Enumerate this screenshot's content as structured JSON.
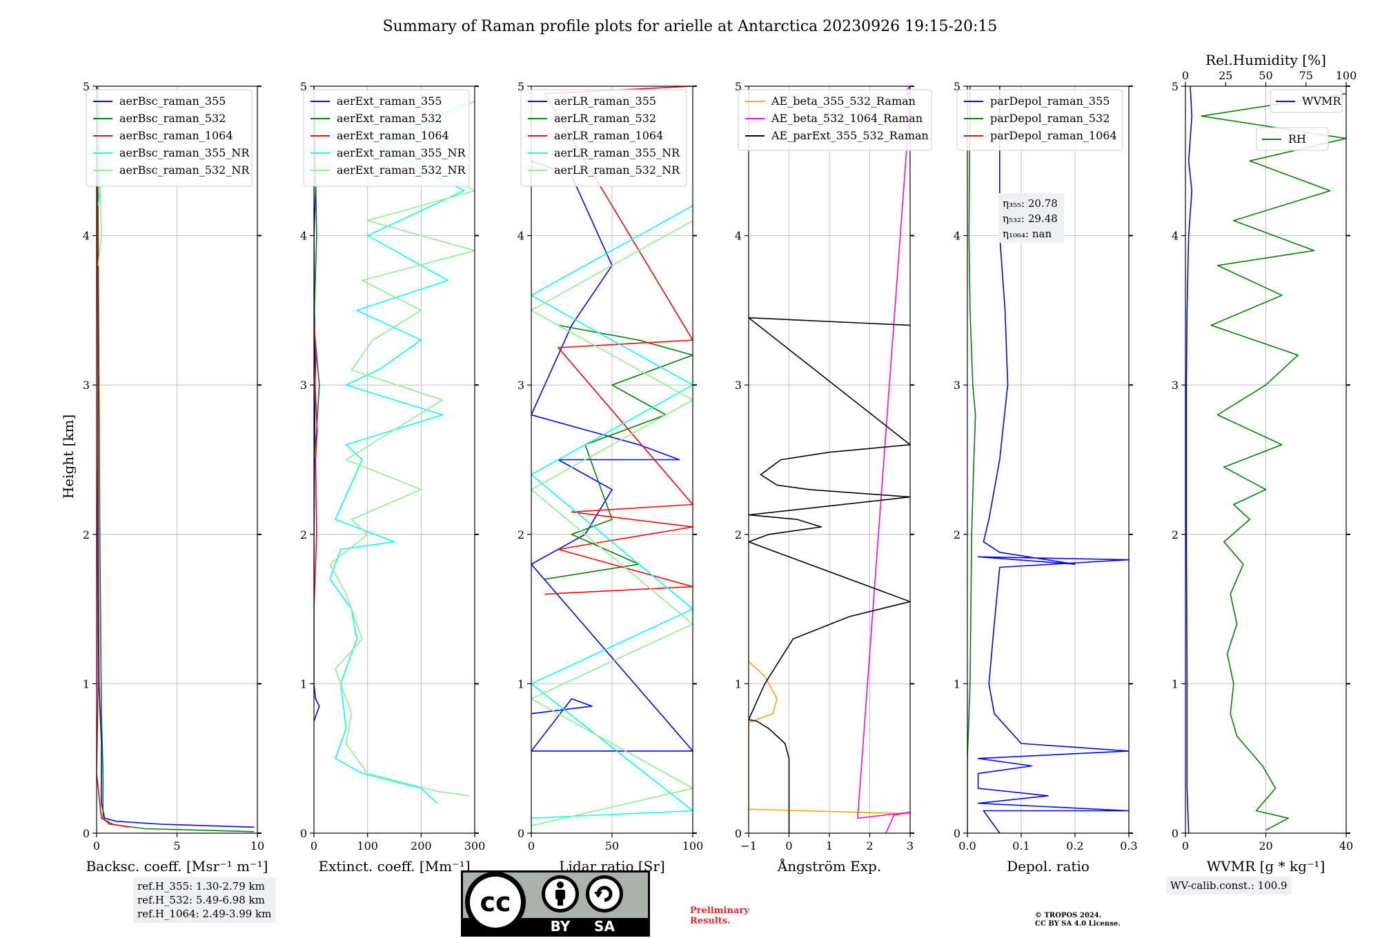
{
  "figure": {
    "title": "Summary of Raman profile plots for arielle at Antarctica 20230926 19:15-20:15",
    "ylabel": "Height [km]"
  },
  "chart_data": [
    {
      "type": "line",
      "xlabel": "Backsc. coeff. [Msr⁻¹ m⁻¹]",
      "xlim": [
        0,
        10
      ],
      "ylim": [
        0,
        5
      ],
      "xticks": [
        "0",
        "5",
        "10"
      ],
      "yticks": [
        "0",
        "1",
        "2",
        "3",
        "4",
        "5"
      ],
      "grid": true,
      "legend": "top-left",
      "series": [
        {
          "name": "aerBsc_raman_355",
          "color": "#0000ff",
          "x": [
            9.8,
            4.0,
            1.2,
            0.5,
            0.3,
            0.3,
            0.15,
            0.1,
            0.08,
            0.05,
            0.05
          ],
          "y": [
            0.04,
            0.06,
            0.08,
            0.1,
            0.2,
            0.6,
            1.0,
            2.0,
            3.0,
            4.0,
            5.0
          ]
        },
        {
          "name": "aerBsc_raman_532",
          "color": "#008000",
          "x": [
            9.8,
            3.0,
            0.8,
            0.4,
            0.4,
            0.3,
            0.2,
            0.15,
            0.1,
            0.05
          ],
          "y": [
            0.01,
            0.03,
            0.06,
            0.1,
            0.4,
            0.8,
            2.0,
            3.0,
            4.0,
            5.0
          ]
        },
        {
          "name": "aerBsc_raman_1064",
          "color": "#ff0000",
          "x": [
            2.0,
            1.0,
            0.3,
            0.1,
            0.0,
            0.1,
            0.05,
            0.1,
            0.05,
            0.0
          ],
          "y": [
            0.04,
            0.06,
            0.1,
            0.3,
            0.4,
            1.0,
            2.0,
            3.0,
            4.0,
            5.0
          ]
        },
        {
          "name": "aerBsc_raman_355_NR",
          "color": "#00ffff",
          "x": [
            0.1,
            0.2,
            0.1,
            0.2,
            0.1
          ],
          "y": [
            4.2,
            4.3,
            4.5,
            4.7,
            5.0
          ]
        },
        {
          "name": "aerBsc_raman_532_NR",
          "color": "#90ee90",
          "x": [
            0.1,
            0.3,
            0.2,
            0.3,
            0.1
          ],
          "y": [
            3.8,
            4.0,
            4.4,
            4.7,
            5.0
          ]
        }
      ]
    },
    {
      "type": "line",
      "xlabel": "Extinct. coeff. [Mm⁻¹]",
      "xlim": [
        0,
        300
      ],
      "ylim": [
        0,
        5
      ],
      "xticks": [
        "0",
        "100",
        "200",
        "300"
      ],
      "yticks": [
        "0",
        "1",
        "2",
        "3",
        "4",
        "5"
      ],
      "grid": true,
      "legend": "top-left",
      "series": [
        {
          "name": "aerExt_raman_355",
          "color": "#0000ff",
          "x": [
            0,
            5,
            10,
            3,
            0,
            0,
            2,
            0,
            3,
            0
          ],
          "y": [
            0.75,
            0.8,
            0.85,
            0.9,
            1.0,
            2.0,
            3.0,
            4.0,
            4.3,
            5.0
          ]
        },
        {
          "name": "aerExt_raman_532",
          "color": "#008000",
          "x": [
            0,
            5,
            10,
            5,
            0,
            5,
            0
          ],
          "y": [
            2.5,
            2.7,
            3.0,
            3.2,
            3.4,
            4.0,
            5.0
          ]
        },
        {
          "name": "aerExt_raman_1064",
          "color": "#ff0000",
          "x": [
            0,
            5,
            3,
            6,
            2,
            4,
            0
          ],
          "y": [
            1.5,
            2.0,
            2.5,
            2.7,
            3.0,
            3.2,
            3.4
          ]
        },
        {
          "name": "aerExt_raman_355_NR",
          "color": "#00ffff",
          "x": [
            230,
            200,
            90,
            40,
            60,
            50,
            80,
            70,
            30,
            50,
            150,
            40,
            90,
            60,
            240,
            60,
            120,
            200,
            80,
            250,
            100,
            280,
            120,
            290
          ],
          "y": [
            0.2,
            0.3,
            0.4,
            0.5,
            0.7,
            1.0,
            1.3,
            1.5,
            1.7,
            1.9,
            1.95,
            2.1,
            2.5,
            2.6,
            2.8,
            3.0,
            3.1,
            3.3,
            3.5,
            3.7,
            4.0,
            4.3,
            4.6,
            4.9
          ]
        },
        {
          "name": "aerExt_raman_532_NR",
          "color": "#90ee90",
          "x": [
            290,
            230,
            100,
            60,
            70,
            40,
            90,
            60,
            30,
            100,
            70,
            200,
            60,
            150,
            240,
            70,
            110,
            200,
            90,
            300,
            100,
            300,
            150,
            300
          ],
          "y": [
            0.25,
            0.28,
            0.4,
            0.6,
            0.8,
            1.1,
            1.3,
            1.6,
            1.8,
            2.0,
            2.1,
            2.3,
            2.5,
            2.7,
            2.9,
            3.1,
            3.3,
            3.5,
            3.7,
            3.9,
            4.1,
            4.3,
            4.6,
            4.9
          ]
        }
      ]
    },
    {
      "type": "line",
      "xlabel": "Lidar ratio [Sr]",
      "xlim": [
        0,
        120
      ],
      "ylim": [
        0,
        5
      ],
      "xticks": [
        "0",
        "50",
        "100"
      ],
      "yticks": [
        "0",
        "1",
        "2",
        "3",
        "4",
        "5"
      ],
      "grid": true,
      "legend": "top-left",
      "series": [
        {
          "name": "aerLR_raman_355",
          "color": "#0000ff",
          "x": [
            0,
            45,
            30,
            0,
            120,
            0,
            40,
            60,
            20,
            110,
            80,
            0,
            10,
            30,
            45,
            60,
            50,
            40,
            30,
            0
          ],
          "y": [
            0.8,
            0.85,
            0.9,
            0.55,
            0.55,
            1.8,
            2.0,
            2.3,
            2.5,
            2.5,
            2.6,
            2.8,
            3.0,
            3.4,
            3.6,
            3.8,
            4.0,
            4.2,
            4.4,
            4.5
          ]
        },
        {
          "name": "aerLR_raman_532",
          "color": "#008000",
          "x": [
            10,
            80,
            30,
            60,
            40,
            100,
            60,
            120,
            80,
            20
          ],
          "y": [
            1.7,
            1.8,
            2.0,
            2.1,
            2.6,
            2.8,
            3.0,
            3.2,
            3.3,
            3.4
          ]
        },
        {
          "name": "aerLR_raman_1064",
          "color": "#ff0000",
          "x": [
            10,
            120,
            20,
            120,
            30,
            120,
            20,
            120,
            10,
            120
          ],
          "y": [
            1.6,
            1.65,
            1.9,
            2.05,
            2.15,
            2.2,
            3.25,
            3.3,
            4.95,
            5.0
          ]
        },
        {
          "name": "aerLR_raman_355_NR",
          "color": "#00ffff",
          "x": [
            0,
            120,
            0,
            120,
            0,
            120,
            0,
            120
          ],
          "y": [
            0.1,
            0.15,
            1.0,
            1.5,
            2.4,
            3.0,
            3.6,
            4.2
          ]
        },
        {
          "name": "aerLR_raman_532_NR",
          "color": "#90ee90",
          "x": [
            0,
            120,
            0,
            120,
            0,
            120,
            0,
            120
          ],
          "y": [
            0.05,
            0.3,
            0.9,
            1.4,
            2.3,
            2.9,
            3.5,
            4.1
          ]
        }
      ]
    },
    {
      "type": "line",
      "xlabel": "Ångström Exp.",
      "xlim": [
        -1,
        3
      ],
      "ylim": [
        0,
        5
      ],
      "xticks": [
        "−1",
        "0",
        "1",
        "2",
        "3"
      ],
      "yticks": [
        "0",
        "1",
        "2",
        "3",
        "4",
        "5"
      ],
      "grid": true,
      "legend": "top-left",
      "series": [
        {
          "name": "AE_beta_355_532_Raman",
          "color": "#ffa500",
          "x": [
            3.0,
            -1.0,
            -1.0,
            -0.4,
            -0.3,
            -0.6,
            -1.0
          ],
          "y": [
            0.13,
            0.16,
            0.74,
            0.8,
            0.9,
            1.05,
            1.15
          ]
        },
        {
          "name": "AE_beta_532_1064_Raman",
          "color": "#ff00ff",
          "x": [
            2.4,
            2.6,
            3.0,
            1.7,
            3.0,
            2.9,
            3.0
          ],
          "y": [
            0.0,
            0.12,
            0.14,
            0.1,
            4.9,
            4.97,
            5.0
          ]
        },
        {
          "name": "AE_parExt_355_532_Raman",
          "color": "#000000",
          "x": [
            0.0,
            0.0,
            -0.1,
            -0.5,
            -0.8,
            -1.0,
            -0.6,
            0.1,
            1.5,
            3.0,
            -1.0,
            -0.5,
            0.8,
            0.2,
            -1.0,
            3.0,
            0.5,
            -0.3,
            -0.7,
            -0.2,
            1.0,
            3.0,
            -1.0,
            3.0
          ],
          "y": [
            0.0,
            0.5,
            0.6,
            0.7,
            0.75,
            0.76,
            1.0,
            1.3,
            1.45,
            1.55,
            1.95,
            2.0,
            2.05,
            2.1,
            2.13,
            2.25,
            2.3,
            2.33,
            2.4,
            2.5,
            2.55,
            2.6,
            3.45,
            3.4
          ]
        }
      ]
    },
    {
      "type": "line",
      "xlabel": "Depol. ratio",
      "xlim": [
        0,
        0.3
      ],
      "ylim": [
        0,
        5
      ],
      "xticks": [
        "0.0",
        "0.1",
        "0.2",
        "0.3"
      ],
      "yticks": [
        "0",
        "1",
        "2",
        "3",
        "4",
        "5"
      ],
      "grid": true,
      "legend": "top-left",
      "series": [
        {
          "name": "parDepol_raman_355",
          "color": "#0000ff",
          "x": [
            0.06,
            0.03,
            0.3,
            0.02,
            0.15,
            0.02,
            0.02,
            0.12,
            0.02,
            0.3,
            0.1,
            0.05,
            0.04,
            0.05,
            0.06,
            0.3,
            0.02,
            0.2,
            0.06,
            0.03,
            0.04,
            0.06,
            0.075,
            0.07,
            0.06,
            0.06
          ],
          "y": [
            0.0,
            0.15,
            0.15,
            0.2,
            0.25,
            0.3,
            0.4,
            0.45,
            0.5,
            0.55,
            0.6,
            0.8,
            1.0,
            1.4,
            1.78,
            1.83,
            1.85,
            1.8,
            1.88,
            1.95,
            2.1,
            2.5,
            3.0,
            3.5,
            4.0,
            5.0
          ]
        },
        {
          "name": "parDepol_raman_532",
          "color": "#008000",
          "x": [
            0.0,
            0.0,
            0.005,
            0.008,
            0.012,
            0.015,
            0.01,
            0.005,
            0.003,
            0.005
          ],
          "y": [
            0.0,
            0.5,
            1.0,
            2.0,
            2.5,
            2.8,
            3.0,
            3.5,
            4.0,
            5.0
          ]
        },
        {
          "name": "parDepol_raman_1064",
          "color": "#ff0000",
          "x": [],
          "y": []
        }
      ],
      "annotation": [
        "η₃₅₅: 20.78",
        "η₅₃₂: 29.48",
        "η₁₀₆₄: nan"
      ]
    },
    {
      "type": "line",
      "xlabel": "WVMR [g * kg⁻¹]",
      "x2label": "Rel.Humidity [%]",
      "xlim": [
        0,
        50
      ],
      "x2lim": [
        0,
        100
      ],
      "ylim": [
        0,
        5
      ],
      "xticks": [
        "0",
        "20",
        "40"
      ],
      "x2ticks": [
        "0",
        "25",
        "50",
        "75",
        "100"
      ],
      "yticks": [
        "0",
        "1",
        "2",
        "3",
        "4",
        "5"
      ],
      "grid": true,
      "legend": "top-right",
      "series": [
        {
          "name": "WVMR",
          "color": "#0000ff",
          "x": [
            1.0,
            0.5,
            0.5,
            0.3,
            0.3,
            0.5,
            1.0,
            2.0,
            1.0,
            2.0,
            1.5
          ],
          "y": [
            0.0,
            0.3,
            1.0,
            2.0,
            3.0,
            3.5,
            4.0,
            4.3,
            4.5,
            4.8,
            5.0
          ]
        },
        {
          "name": "RH",
          "color": "#008000",
          "x": [
            25,
            32,
            22,
            28,
            24,
            20,
            16,
            14,
            15,
            13,
            16,
            14,
            18,
            12,
            20,
            15,
            25,
            12,
            30,
            10,
            25,
            35,
            8,
            30,
            10,
            40,
            15,
            45,
            20,
            50,
            5,
            50
          ],
          "y": [
            0.02,
            0.1,
            0.15,
            0.3,
            0.45,
            0.55,
            0.65,
            0.8,
            1.0,
            1.2,
            1.4,
            1.6,
            1.8,
            1.95,
            2.1,
            2.2,
            2.3,
            2.45,
            2.6,
            2.8,
            3.0,
            3.2,
            3.4,
            3.6,
            3.8,
            3.9,
            4.1,
            4.3,
            4.5,
            4.65,
            4.8,
            4.95
          ]
        }
      ]
    }
  ],
  "notes": {
    "ref_heights": [
      "ref.H_355: 1.30-2.79 km",
      "ref.H_532: 5.49-6.98 km",
      "ref.H_1064: 2.49-3.99 km"
    ],
    "wv_calib": "WV-calib.const.: 100.9",
    "preliminary": [
      "Preliminary",
      "Results."
    ],
    "copyright": [
      "© TROPOS 2024.",
      "CC BY SA 4.0 License."
    ]
  },
  "badge": {
    "by": "BY",
    "sa": "SA",
    "cc": "cc"
  }
}
